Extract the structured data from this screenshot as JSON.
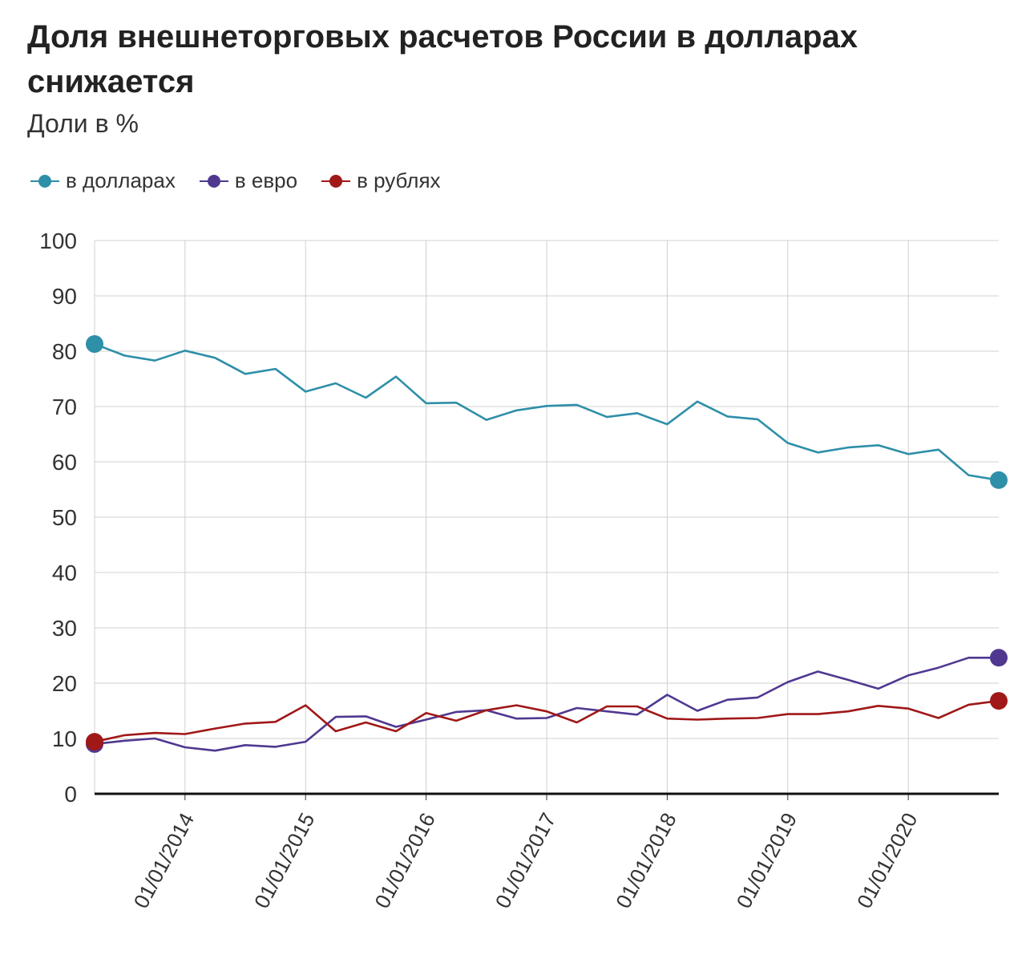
{
  "chart_data": {
    "type": "line",
    "title": "Доля внешнеторговых расчетов России в долларах снижается",
    "subtitle": "Доли в %",
    "xlabel": "",
    "ylabel": "",
    "ylim": [
      0,
      100
    ],
    "y_ticks": [
      "0",
      "10",
      "20",
      "30",
      "40",
      "50",
      "60",
      "70",
      "80",
      "90",
      "100"
    ],
    "x_ticks": [
      "01/01/2014",
      "01/01/2015",
      "01/01/2016",
      "01/01/2017",
      "01/01/2018",
      "01/01/2019",
      "01/01/2020"
    ],
    "x": [
      "2013-04",
      "2013-07",
      "2013-10",
      "2014-01",
      "2014-04",
      "2014-07",
      "2014-10",
      "2015-01",
      "2015-04",
      "2015-07",
      "2015-10",
      "2016-01",
      "2016-04",
      "2016-07",
      "2016-10",
      "2017-01",
      "2017-04",
      "2017-07",
      "2017-10",
      "2018-01",
      "2018-04",
      "2018-07",
      "2018-10",
      "2019-01",
      "2019-04",
      "2019-07",
      "2019-10",
      "2020-01",
      "2020-04",
      "2020-07",
      "2020-10"
    ],
    "legend_position": "top-left",
    "grid": true,
    "series": [
      {
        "name": "в долларах",
        "color": "#2e8fa8",
        "values": [
          81.3,
          79.2,
          78.3,
          80.1,
          78.8,
          75.9,
          76.8,
          72.7,
          74.2,
          71.6,
          75.4,
          70.6,
          70.7,
          67.6,
          69.3,
          70.1,
          70.3,
          68.1,
          68.8,
          66.8,
          70.9,
          68.2,
          67.7,
          63.4,
          61.7,
          62.6,
          63.0,
          61.4,
          62.2,
          57.6,
          56.7
        ]
      },
      {
        "name": "в евро",
        "color": "#503890",
        "values": [
          9.0,
          9.6,
          10.0,
          8.4,
          7.8,
          8.8,
          8.5,
          9.4,
          13.9,
          14.0,
          12.1,
          13.4,
          14.8,
          15.1,
          13.6,
          13.7,
          15.5,
          14.9,
          14.3,
          17.9,
          15.0,
          17.0,
          17.4,
          20.2,
          22.1,
          20.6,
          19.0,
          21.4,
          22.8,
          24.6,
          24.6
        ]
      },
      {
        "name": "в рублях",
        "color": "#a01818",
        "values": [
          9.4,
          10.6,
          11.0,
          10.8,
          11.8,
          12.7,
          13.0,
          16.0,
          11.3,
          12.9,
          11.3,
          14.6,
          13.2,
          15.1,
          16.0,
          14.9,
          12.9,
          15.8,
          15.8,
          13.6,
          13.4,
          13.6,
          13.7,
          14.4,
          14.4,
          14.9,
          15.9,
          15.4,
          13.7,
          16.1,
          16.8
        ]
      }
    ]
  }
}
